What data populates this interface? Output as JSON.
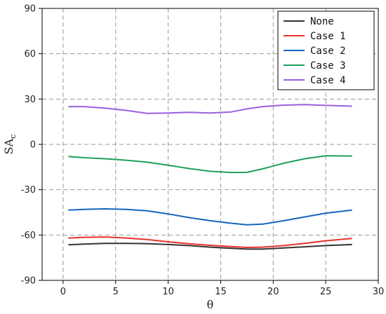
{
  "chart_data": {
    "type": "line",
    "xlabel": "θ",
    "ylabel": "SA",
    "ylabel_sub": "c",
    "xlim": [
      -2,
      30
    ],
    "ylim": [
      -90,
      90
    ],
    "xticks": [
      0,
      5,
      10,
      15,
      20,
      25,
      30
    ],
    "yticks": [
      -90,
      -60,
      -30,
      0,
      30,
      60,
      90
    ],
    "grid": true,
    "legend_position": "top-right",
    "series": [
      {
        "name": "None",
        "color": "#333333",
        "x": [
          0.5,
          2,
          4,
          6,
          8,
          10,
          12,
          14,
          16,
          17.5,
          19,
          21,
          23,
          25,
          27.5
        ],
        "y": [
          -66.5,
          -66,
          -65.5,
          -65.5,
          -65.7,
          -66.3,
          -67,
          -68,
          -68.8,
          -69.3,
          -69.3,
          -68.5,
          -67.8,
          -67,
          -66.3
        ]
      },
      {
        "name": "Case 1",
        "color": "#e8322b",
        "x": [
          0.5,
          2,
          4,
          6,
          8,
          10,
          12,
          14,
          16,
          17.5,
          19,
          21,
          23,
          25,
          27.5
        ],
        "y": [
          -62,
          -61.5,
          -61.3,
          -62,
          -63,
          -64.5,
          -65.8,
          -66.8,
          -67.6,
          -68.2,
          -68,
          -67,
          -65.5,
          -63.8,
          -62.3
        ]
      },
      {
        "name": "Case 2",
        "color": "#1565c0",
        "x": [
          0.5,
          2,
          4,
          6,
          8,
          10,
          12,
          14,
          16,
          17.5,
          19,
          21,
          23,
          25,
          27.5
        ],
        "y": [
          -43.5,
          -43,
          -42.7,
          -43,
          -44,
          -46,
          -48.5,
          -50.5,
          -52.2,
          -53.2,
          -52.8,
          -50.5,
          -48,
          -45.5,
          -43.5
        ]
      },
      {
        "name": "Case 3",
        "color": "#1fa05a",
        "x": [
          0.5,
          2,
          4,
          6,
          8,
          10,
          12,
          14,
          16,
          17.5,
          19,
          21,
          23,
          25,
          27.5
        ],
        "y": [
          -8,
          -8.8,
          -9.5,
          -10.5,
          -11.8,
          -13.8,
          -16,
          -17.8,
          -18.6,
          -18.5,
          -16.2,
          -12.5,
          -9.5,
          -7.5,
          -7.7
        ]
      },
      {
        "name": "Case 4",
        "color": "#9a60e0",
        "x": [
          0.5,
          2,
          4,
          6,
          8,
          10,
          12,
          14,
          16,
          17.5,
          19,
          21,
          23,
          25,
          27.5
        ],
        "y": [
          25,
          25,
          24,
          22.5,
          20.5,
          20.8,
          21.2,
          20.8,
          21.5,
          23.5,
          25,
          26,
          26.3,
          25.8,
          25.3
        ]
      }
    ]
  }
}
